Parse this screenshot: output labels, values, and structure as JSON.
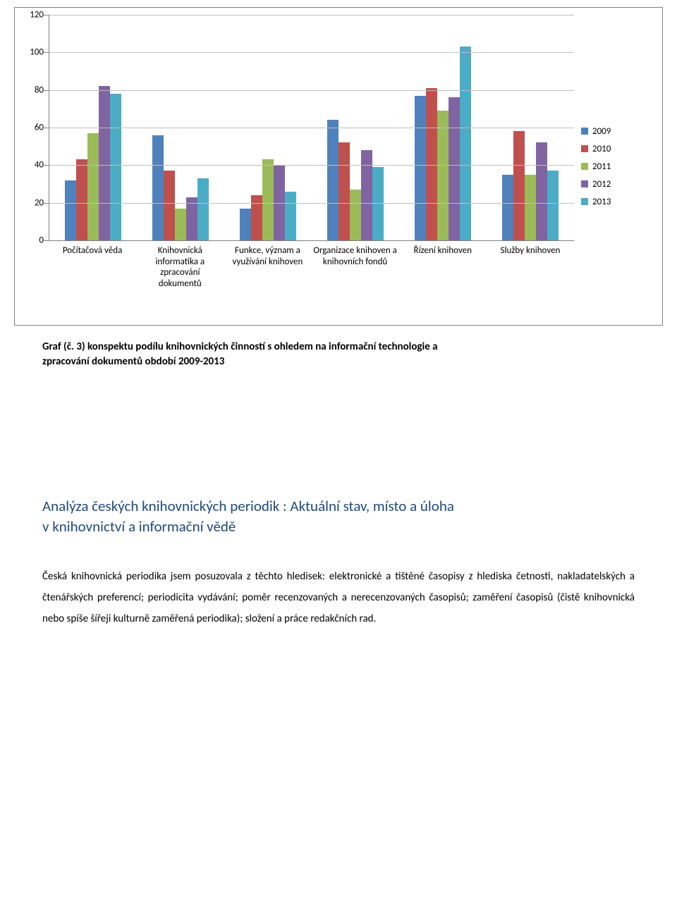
{
  "chart": {
    "type": "bar-grouped",
    "ymax": 120,
    "ytick_step": 20,
    "grid_color": "#bfbfbf",
    "axis_color": "#808080",
    "series": [
      {
        "label": "2009",
        "color": "#4f81bd"
      },
      {
        "label": "2010",
        "color": "#c0504d"
      },
      {
        "label": "2011",
        "color": "#9bbb59"
      },
      {
        "label": "2012",
        "color": "#8064a2"
      },
      {
        "label": "2013",
        "color": "#4bacc6"
      }
    ],
    "categories": [
      "Počítačová věda",
      "Knihovnická informatika a zpracování dokumentů",
      "Funkce, význam a využívání knihoven",
      "Organizace knihoven a knihovních fondů",
      "Řízení knihoven",
      "Služby knihoven"
    ],
    "values": [
      [
        32,
        43,
        57,
        82,
        78
      ],
      [
        56,
        37,
        17,
        23,
        33
      ],
      [
        17,
        24,
        43,
        40,
        26
      ],
      [
        64,
        52,
        27,
        48,
        39
      ],
      [
        77,
        81,
        69,
        76,
        103
      ],
      [
        35,
        58,
        35,
        52,
        37
      ]
    ]
  },
  "caption_lines": [
    "Graf (č. 3)  konspektu podílu knihovnických činností s ohledem na informační technologie a",
    "zpracování dokumentů  období 2009-2013"
  ],
  "heading_lines": [
    "Analýza českých knihovnických periodik :  Aktuální stav, místo a úloha",
    "v knihovnictví a informační vědě"
  ],
  "body_text": "Česká knihovnická periodika jsem posuzovala z těchto hledisek: elektronické a tištěné časopisy z hlediska četnosti, nakladatelských a čtenářských preferencí; periodicita vydávání; poměr recenzovaných a nerecenzovaných časopisů; zaměření časopisů (čistě knihovnická nebo spíše šířeji kulturně zaměřená periodika); složení a práce redakčních rad."
}
